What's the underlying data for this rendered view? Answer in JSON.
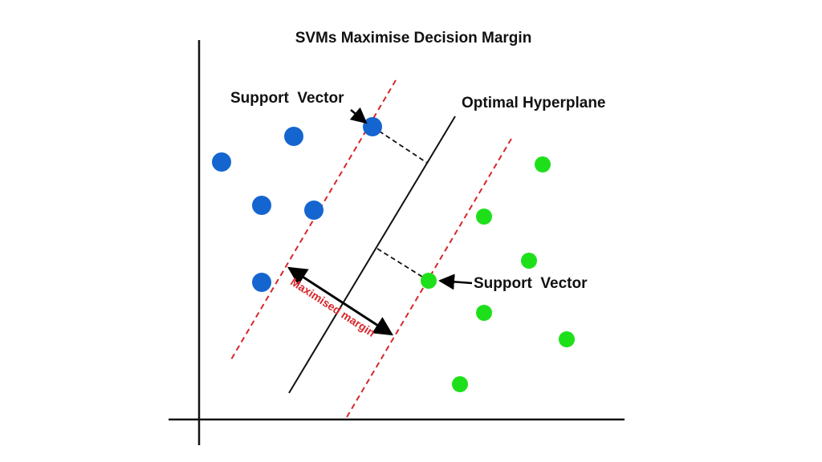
{
  "title": "SVMs Maximise Decision Margin",
  "labels": {
    "support_vector_top": "Support  Vector",
    "hyperplane": "Optimal Hyperplane",
    "support_vector_bottom": "Support  Vector",
    "margin": "Maximised margin"
  }
}
